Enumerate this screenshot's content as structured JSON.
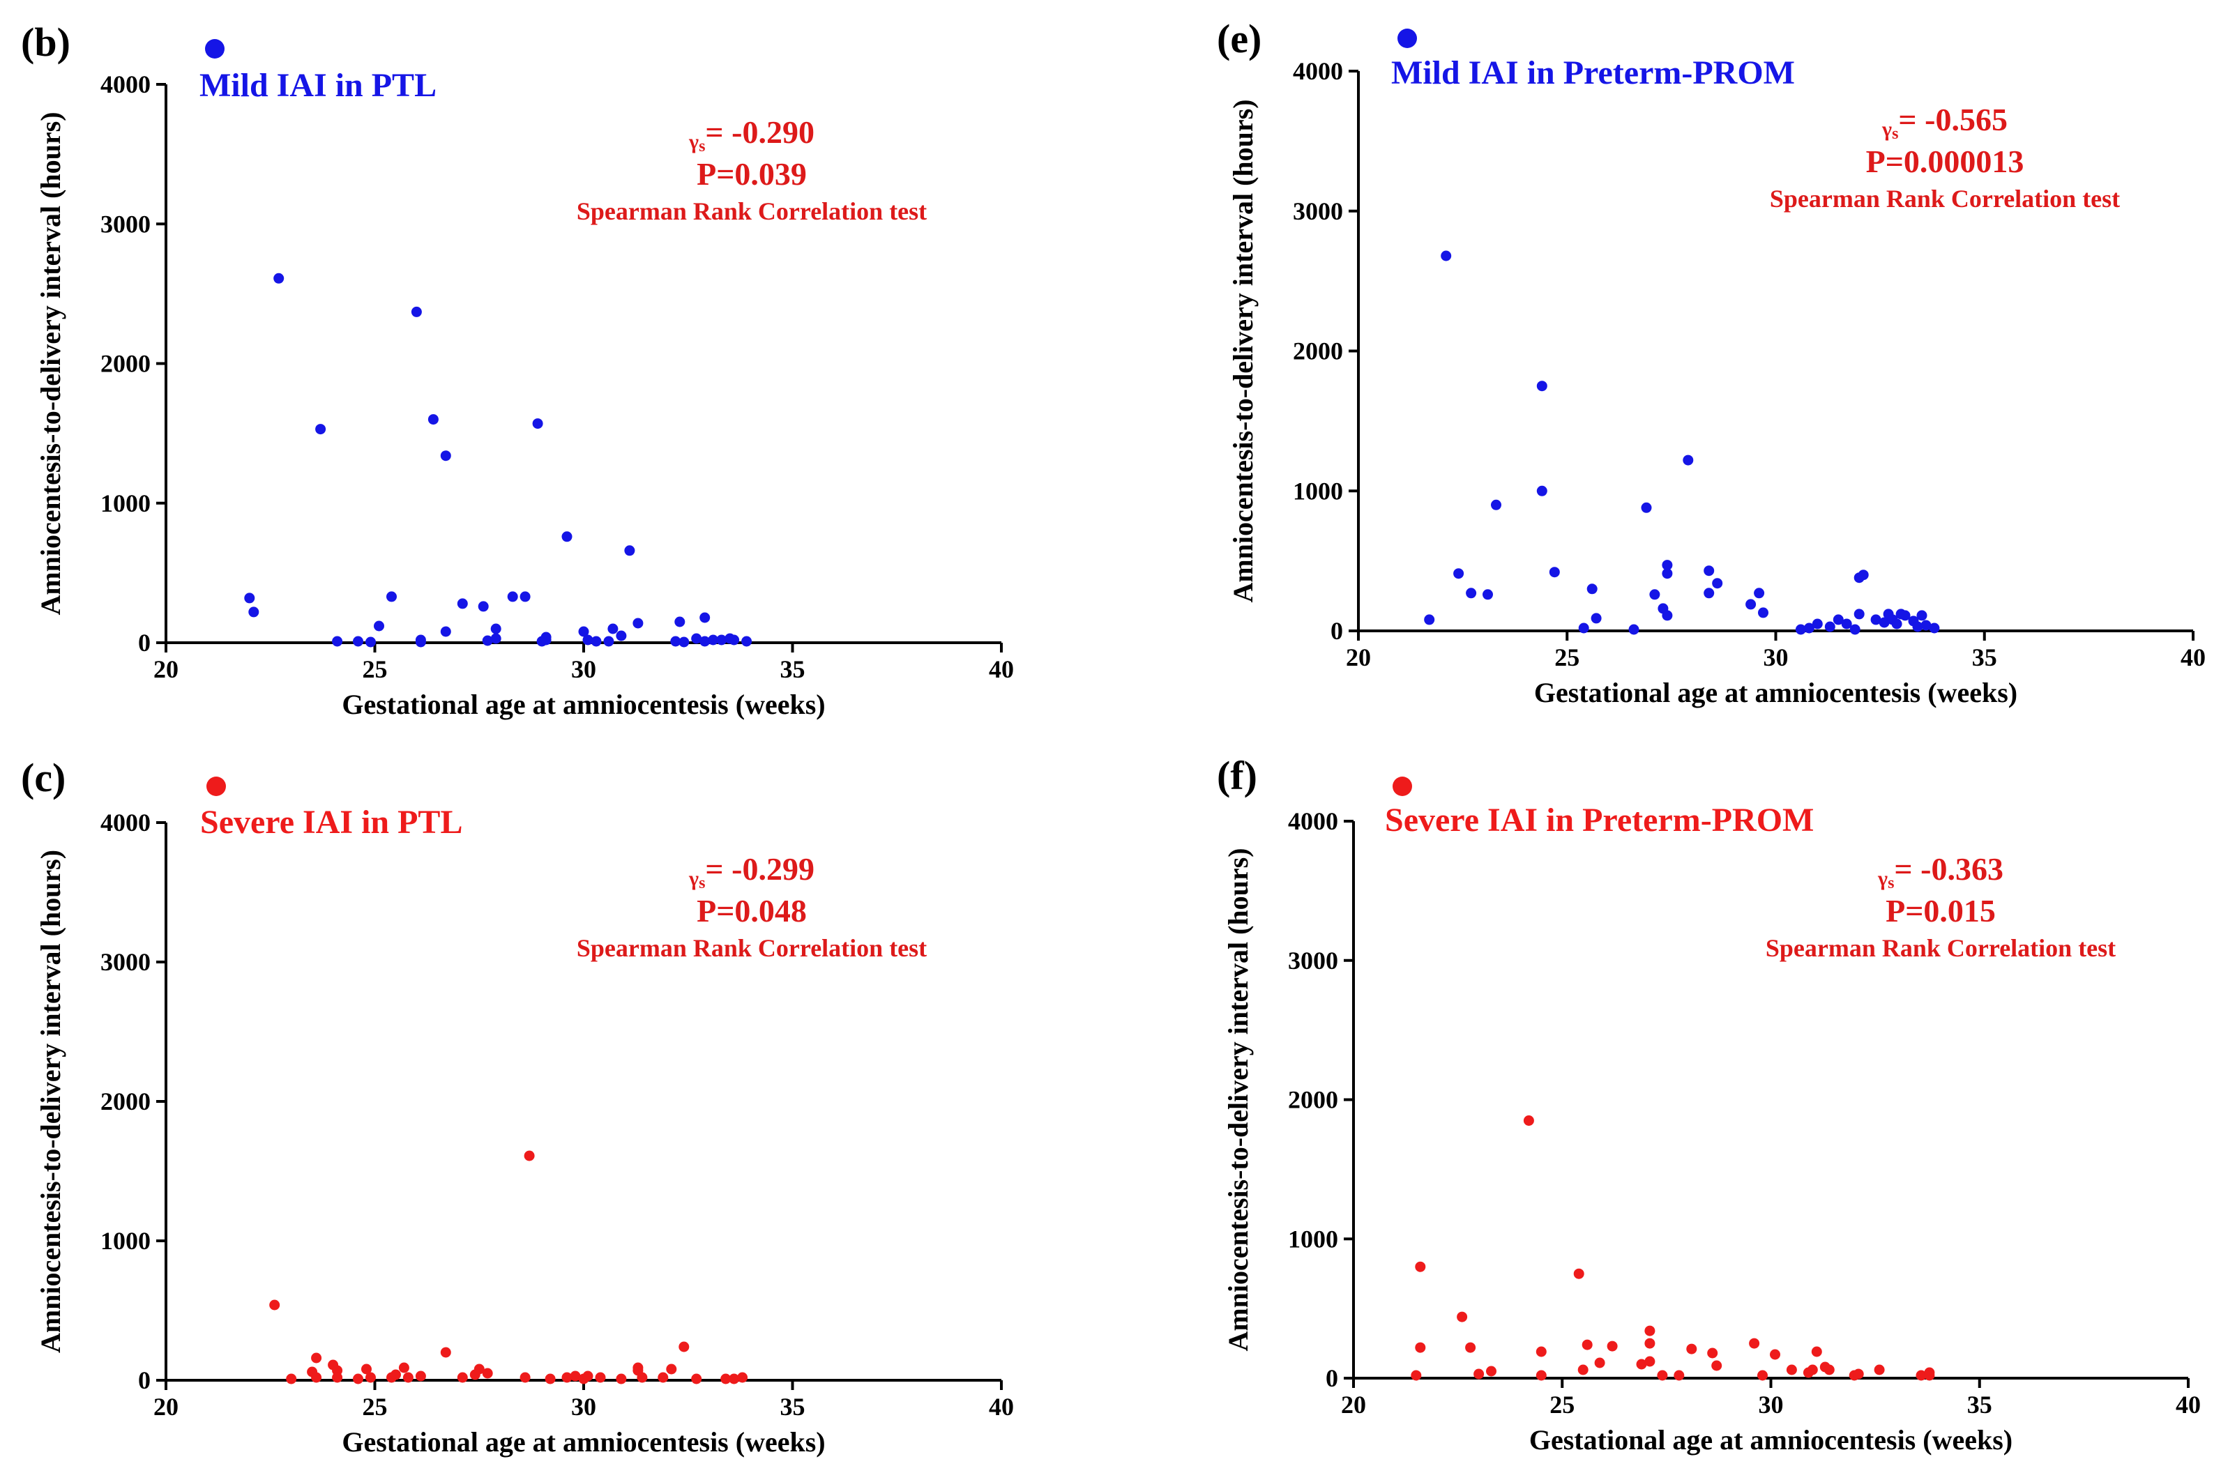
{
  "figure": {
    "x_axis_label": "Gestational age at amniocentesis (weeks)",
    "y_axis_label": "Amniocentesis-to-delivery interval (hours)",
    "stat_gamma_symbol": "γ",
    "stat_gamma_subscript": "s",
    "colors": {
      "mild": "#1515e6",
      "severe": "#ee1b1b",
      "axis": "#000000",
      "stat": "#dd1a1a"
    }
  },
  "chart_data": [
    {
      "panel": "(b)",
      "type": "scatter",
      "title": "Mild IAI in PTL",
      "color_key": "mild",
      "xlabel": "Gestational age at amniocentesis (weeks)",
      "ylabel": "Amniocentesis-to-delivery interval (hours)",
      "xlim": [
        20,
        40
      ],
      "ylim": [
        0,
        4000
      ],
      "xticks": [
        "20",
        "25",
        "30",
        "35",
        "40"
      ],
      "yticks": [
        "0",
        "1000",
        "2000",
        "3000",
        "4000"
      ],
      "rho": "= -0.290",
      "p_value": "P=0.039",
      "test": "Spearman Rank Correlation test",
      "points": [
        [
          22.0,
          320
        ],
        [
          22.1,
          220
        ],
        [
          22.7,
          2610
        ],
        [
          23.7,
          1530
        ],
        [
          24.1,
          10
        ],
        [
          24.6,
          10
        ],
        [
          24.9,
          5
        ],
        [
          25.1,
          120
        ],
        [
          25.4,
          330
        ],
        [
          26.0,
          2370
        ],
        [
          26.1,
          20
        ],
        [
          26.1,
          5
        ],
        [
          26.4,
          1600
        ],
        [
          26.7,
          1340
        ],
        [
          26.7,
          80
        ],
        [
          27.1,
          280
        ],
        [
          27.6,
          260
        ],
        [
          27.7,
          15
        ],
        [
          27.9,
          100
        ],
        [
          27.9,
          30
        ],
        [
          28.3,
          330
        ],
        [
          28.6,
          330
        ],
        [
          28.9,
          1570
        ],
        [
          29.0,
          10
        ],
        [
          29.1,
          40
        ],
        [
          29.1,
          20
        ],
        [
          29.6,
          760
        ],
        [
          30.0,
          80
        ],
        [
          30.1,
          20
        ],
        [
          30.3,
          10
        ],
        [
          30.6,
          10
        ],
        [
          30.7,
          100
        ],
        [
          30.9,
          50
        ],
        [
          31.1,
          660
        ],
        [
          31.3,
          140
        ],
        [
          32.2,
          10
        ],
        [
          32.3,
          150
        ],
        [
          32.4,
          5
        ],
        [
          32.7,
          30
        ],
        [
          32.9,
          180
        ],
        [
          32.9,
          10
        ],
        [
          33.1,
          20
        ],
        [
          33.3,
          20
        ],
        [
          33.5,
          30
        ],
        [
          33.6,
          20
        ],
        [
          33.9,
          10
        ]
      ]
    },
    {
      "panel": "(e)",
      "type": "scatter",
      "title": "Mild IAI in Preterm-PROM",
      "color_key": "mild",
      "xlabel": "Gestational age at amniocentesis (weeks)",
      "ylabel": "Amniocentesis-to-delivery interval (hours)",
      "xlim": [
        20,
        40
      ],
      "ylim": [
        0,
        4000
      ],
      "xticks": [
        "20",
        "25",
        "30",
        "35",
        "40"
      ],
      "yticks": [
        "0",
        "1000",
        "2000",
        "3000",
        "4000"
      ],
      "rho": "= -0.565",
      "p_value": "P=0.000013",
      "test": "Spearman Rank Correlation test",
      "points": [
        [
          21.7,
          80
        ],
        [
          22.1,
          2680
        ],
        [
          22.4,
          410
        ],
        [
          22.7,
          270
        ],
        [
          23.1,
          260
        ],
        [
          23.3,
          900
        ],
        [
          24.4,
          1750
        ],
        [
          24.4,
          1000
        ],
        [
          24.7,
          420
        ],
        [
          25.4,
          20
        ],
        [
          25.6,
          300
        ],
        [
          25.7,
          90
        ],
        [
          26.6,
          10
        ],
        [
          26.9,
          880
        ],
        [
          27.1,
          260
        ],
        [
          27.3,
          160
        ],
        [
          27.4,
          470
        ],
        [
          27.4,
          410
        ],
        [
          27.4,
          110
        ],
        [
          27.9,
          1220
        ],
        [
          28.4,
          430
        ],
        [
          28.4,
          270
        ],
        [
          28.6,
          340
        ],
        [
          29.4,
          190
        ],
        [
          29.6,
          270
        ],
        [
          29.7,
          130
        ],
        [
          30.6,
          10
        ],
        [
          30.8,
          20
        ],
        [
          31.0,
          50
        ],
        [
          31.3,
          30
        ],
        [
          31.5,
          80
        ],
        [
          31.7,
          50
        ],
        [
          31.9,
          10
        ],
        [
          32.0,
          120
        ],
        [
          32.0,
          380
        ],
        [
          32.1,
          400
        ],
        [
          32.4,
          80
        ],
        [
          32.6,
          60
        ],
        [
          32.7,
          120
        ],
        [
          32.8,
          80
        ],
        [
          32.9,
          50
        ],
        [
          33.0,
          120
        ],
        [
          33.1,
          110
        ],
        [
          33.3,
          70
        ],
        [
          33.4,
          30
        ],
        [
          33.5,
          110
        ],
        [
          33.6,
          40
        ],
        [
          33.8,
          20
        ]
      ]
    },
    {
      "panel": "(c)",
      "type": "scatter",
      "title": "Severe IAI in PTL",
      "color_key": "severe",
      "xlabel": "Gestational age at amniocentesis (weeks)",
      "ylabel": "Amniocentesis-to-delivery interval (hours)",
      "xlim": [
        20,
        40
      ],
      "ylim": [
        0,
        4000
      ],
      "xticks": [
        "20",
        "25",
        "30",
        "35",
        "40"
      ],
      "yticks": [
        "0",
        "1000",
        "2000",
        "3000",
        "4000"
      ],
      "rho": "= -0.299",
      "p_value": "P=0.048",
      "test": "Spearman Rank Correlation test",
      "points": [
        [
          22.6,
          540
        ],
        [
          23.0,
          10
        ],
        [
          23.5,
          60
        ],
        [
          23.6,
          160
        ],
        [
          23.6,
          20
        ],
        [
          24.0,
          110
        ],
        [
          24.1,
          70
        ],
        [
          24.1,
          20
        ],
        [
          24.6,
          10
        ],
        [
          24.8,
          80
        ],
        [
          24.9,
          20
        ],
        [
          25.4,
          20
        ],
        [
          25.5,
          40
        ],
        [
          25.7,
          90
        ],
        [
          25.8,
          20
        ],
        [
          26.1,
          30
        ],
        [
          26.7,
          200
        ],
        [
          27.1,
          20
        ],
        [
          27.4,
          40
        ],
        [
          27.5,
          80
        ],
        [
          27.7,
          50
        ],
        [
          28.6,
          20
        ],
        [
          28.7,
          1610
        ],
        [
          29.2,
          10
        ],
        [
          29.6,
          20
        ],
        [
          29.8,
          30
        ],
        [
          30.0,
          10
        ],
        [
          30.1,
          30
        ],
        [
          30.4,
          20
        ],
        [
          30.9,
          10
        ],
        [
          31.3,
          70
        ],
        [
          31.3,
          90
        ],
        [
          31.4,
          20
        ],
        [
          31.9,
          20
        ],
        [
          32.1,
          80
        ],
        [
          32.4,
          240
        ],
        [
          32.7,
          10
        ],
        [
          33.4,
          10
        ],
        [
          33.6,
          10
        ],
        [
          33.8,
          20
        ]
      ]
    },
    {
      "panel": "(f)",
      "type": "scatter",
      "title": "Severe IAI in Preterm-PROM",
      "color_key": "severe",
      "xlabel": "Gestational age at amniocentesis (weeks)",
      "ylabel": "Amniocentesis-to-delivery interval (hours)",
      "xlim": [
        20,
        40
      ],
      "ylim": [
        0,
        4000
      ],
      "xticks": [
        "20",
        "25",
        "30",
        "35",
        "40"
      ],
      "yticks": [
        "0",
        "1000",
        "2000",
        "3000",
        "4000"
      ],
      "rho": "= -0.363",
      "p_value": "P=0.015",
      "test": "Spearman Rank Correlation test",
      "points": [
        [
          21.5,
          20
        ],
        [
          21.6,
          800
        ],
        [
          21.6,
          220
        ],
        [
          22.6,
          440
        ],
        [
          22.8,
          220
        ],
        [
          23.0,
          30
        ],
        [
          23.3,
          50
        ],
        [
          24.2,
          1850
        ],
        [
          24.5,
          190
        ],
        [
          24.5,
          20
        ],
        [
          25.4,
          750
        ],
        [
          25.5,
          60
        ],
        [
          25.6,
          240
        ],
        [
          25.9,
          110
        ],
        [
          26.2,
          230
        ],
        [
          26.9,
          100
        ],
        [
          27.1,
          340
        ],
        [
          27.1,
          250
        ],
        [
          27.1,
          120
        ],
        [
          27.4,
          20
        ],
        [
          27.8,
          20
        ],
        [
          28.1,
          210
        ],
        [
          28.6,
          180
        ],
        [
          28.7,
          90
        ],
        [
          29.6,
          250
        ],
        [
          29.8,
          20
        ],
        [
          30.1,
          170
        ],
        [
          30.5,
          60
        ],
        [
          30.9,
          40
        ],
        [
          31.0,
          60
        ],
        [
          31.1,
          190
        ],
        [
          31.3,
          80
        ],
        [
          31.4,
          60
        ],
        [
          32.0,
          20
        ],
        [
          32.1,
          30
        ],
        [
          32.6,
          60
        ],
        [
          33.6,
          20
        ],
        [
          33.8,
          40
        ],
        [
          33.8,
          20
        ]
      ]
    }
  ]
}
